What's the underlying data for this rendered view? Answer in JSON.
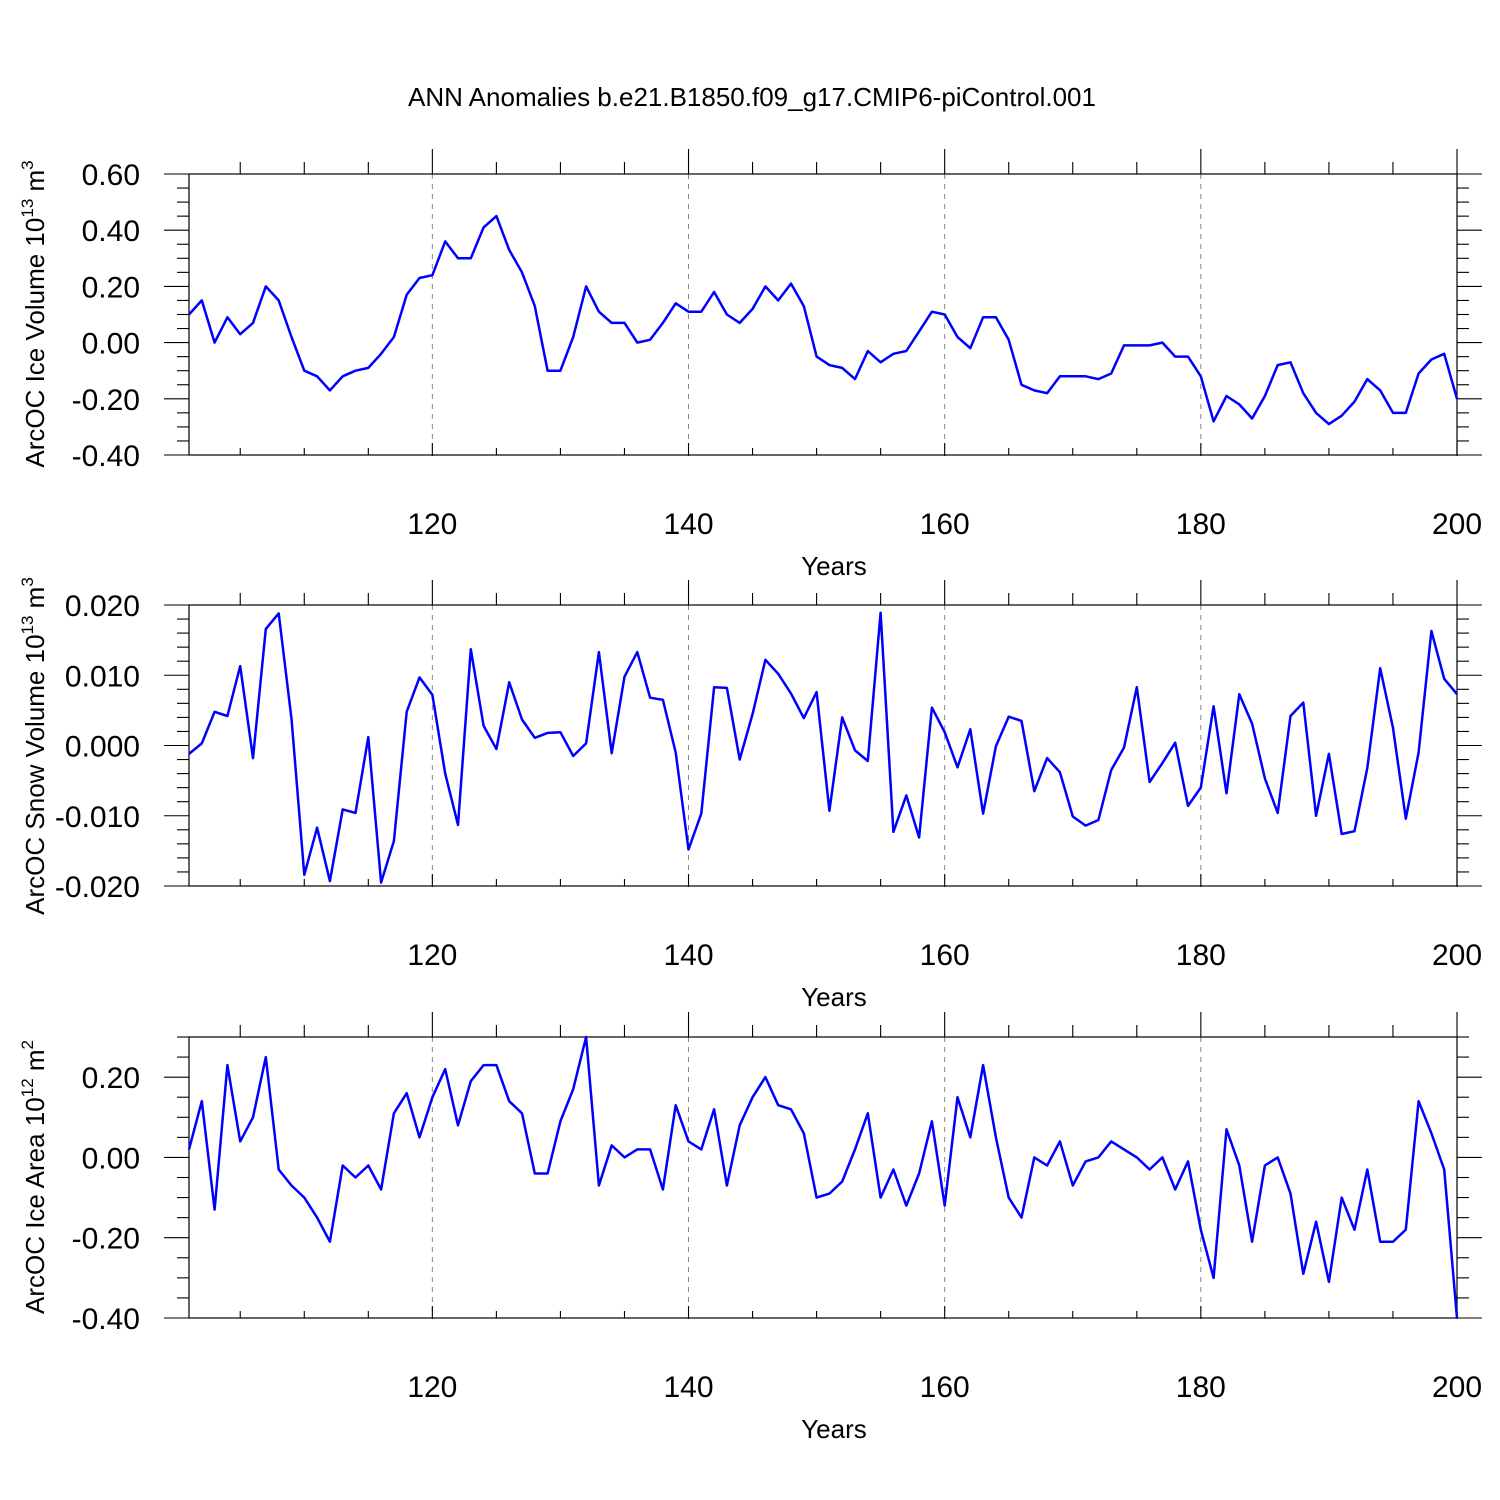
{
  "figure": {
    "title": "ANN Anomalies b.e21.B1850.f09_g17.CMIP6-piControl.001"
  },
  "chart_data": [
    {
      "type": "line",
      "xlabel": "Years",
      "ylabel": {
        "text": "ArcOC Ice Volume 10",
        "sup": "13",
        "unit": " m",
        "unit_sup": "3"
      },
      "xlim": [
        101,
        200
      ],
      "ylim": [
        -0.4,
        0.6
      ],
      "xticks": [
        120,
        140,
        160,
        180,
        200
      ],
      "xtick_labels": [
        "120",
        "140",
        "160",
        "180",
        "200"
      ],
      "yticks": [
        -0.4,
        -0.2,
        0.0,
        0.2,
        0.4,
        0.6
      ],
      "ytick_labels": [
        "-0.40",
        "-0.20",
        "0.00",
        "0.20",
        "0.40",
        "0.60"
      ],
      "y_minor_step": 0.05,
      "grid": "vertical dashed at major x ticks",
      "line_color": "#0000ff",
      "x_start": 101,
      "values": [
        0.1,
        0.15,
        0.0,
        0.09,
        0.03,
        0.07,
        0.2,
        0.15,
        0.02,
        -0.1,
        -0.12,
        -0.17,
        -0.12,
        -0.1,
        -0.09,
        -0.04,
        0.02,
        0.17,
        0.23,
        0.24,
        0.36,
        0.3,
        0.3,
        0.41,
        0.45,
        0.33,
        0.25,
        0.13,
        -0.1,
        -0.1,
        0.02,
        0.2,
        0.11,
        0.07,
        0.07,
        0.0,
        0.01,
        0.07,
        0.14,
        0.11,
        0.11,
        0.18,
        0.1,
        0.07,
        0.12,
        0.2,
        0.15,
        0.21,
        0.13,
        -0.05,
        -0.08,
        -0.09,
        -0.13,
        -0.03,
        -0.07,
        -0.04,
        -0.03,
        0.04,
        0.11,
        0.1,
        0.02,
        -0.02,
        0.09,
        0.09,
        0.01,
        -0.15,
        -0.17,
        -0.18,
        -0.12,
        -0.12,
        -0.12,
        -0.13,
        -0.11,
        -0.01,
        -0.01,
        -0.01,
        0.0,
        -0.05,
        -0.05,
        -0.12,
        -0.28,
        -0.19,
        -0.22,
        -0.27,
        -0.19,
        -0.08,
        -0.07,
        -0.18,
        -0.25,
        -0.29,
        -0.26,
        -0.21,
        -0.13,
        -0.17,
        -0.25,
        -0.25,
        -0.11,
        -0.06,
        -0.04,
        -0.2
      ]
    },
    {
      "type": "line",
      "xlabel": "Years",
      "ylabel": {
        "text": "ArcOC Snow Volume 10",
        "sup": "13",
        "unit": " m",
        "unit_sup": "3"
      },
      "xlim": [
        101,
        200
      ],
      "ylim": [
        -0.02,
        0.02
      ],
      "xticks": [
        120,
        140,
        160,
        180,
        200
      ],
      "xtick_labels": [
        "120",
        "140",
        "160",
        "180",
        "200"
      ],
      "yticks": [
        -0.02,
        -0.01,
        0.0,
        0.01,
        0.02
      ],
      "ytick_labels": [
        "-0.020",
        "-0.010",
        "0.000",
        "0.010",
        "0.020"
      ],
      "y_minor_step": 0.002,
      "grid": "vertical dashed at major x ticks",
      "line_color": "#0000ff",
      "x_start": 101,
      "values": [
        -0.0012,
        0.0003,
        0.0048,
        0.0042,
        0.0113,
        -0.0018,
        0.0166,
        0.0188,
        0.0038,
        -0.0184,
        -0.0117,
        -0.0193,
        -0.0091,
        -0.0096,
        0.0012,
        -0.0195,
        -0.0136,
        0.0048,
        0.0097,
        0.0072,
        -0.004,
        -0.0113,
        0.0137,
        0.0028,
        -0.0005,
        0.009,
        0.0037,
        0.0011,
        0.0018,
        0.0019,
        -0.0015,
        0.0003,
        0.0133,
        -0.0011,
        0.0098,
        0.0133,
        0.0068,
        0.0065,
        -0.001,
        -0.0148,
        -0.0097,
        0.0083,
        0.0082,
        -0.002,
        0.0045,
        0.0122,
        0.0102,
        0.0074,
        0.0039,
        0.0076,
        -0.0093,
        0.004,
        -0.0007,
        -0.0022,
        0.0189,
        -0.0123,
        -0.0071,
        -0.0131,
        0.0054,
        0.0019,
        -0.0031,
        0.0023,
        -0.0097,
        -0.0001,
        0.0041,
        0.0035,
        -0.0065,
        -0.0018,
        -0.0038,
        -0.0101,
        -0.0114,
        -0.0106,
        -0.0035,
        -0.0003,
        0.0083,
        -0.0052,
        -0.0025,
        0.0004,
        -0.0086,
        -0.006,
        0.0056,
        -0.0068,
        0.0073,
        0.0031,
        -0.0047,
        -0.0096,
        0.0042,
        0.0061,
        -0.01,
        -0.0012,
        -0.0126,
        -0.0122,
        -0.0032,
        0.011,
        0.0025,
        -0.0104,
        -0.001,
        0.0163,
        0.0095,
        0.0073
      ]
    },
    {
      "type": "line",
      "xlabel": "Years",
      "ylabel": {
        "text": "ArcOC Ice Area 10",
        "sup": "12",
        "unit": " m",
        "unit_sup": "2"
      },
      "xlim": [
        101,
        200
      ],
      "ylim": [
        -0.4,
        0.3
      ],
      "xticks": [
        120,
        140,
        160,
        180,
        200
      ],
      "xtick_labels": [
        "120",
        "140",
        "160",
        "180",
        "200"
      ],
      "yticks": [
        -0.4,
        -0.2,
        0.0,
        0.2
      ],
      "ytick_labels": [
        "-0.40",
        "-0.20",
        "0.00",
        "0.20"
      ],
      "y_minor_step": 0.05,
      "grid": "vertical dashed at major x ticks",
      "line_color": "#0000ff",
      "x_start": 101,
      "values": [
        0.02,
        0.14,
        -0.13,
        0.23,
        0.04,
        0.1,
        0.25,
        -0.03,
        -0.07,
        -0.1,
        -0.15,
        -0.21,
        -0.02,
        -0.05,
        -0.02,
        -0.08,
        0.11,
        0.16,
        0.05,
        0.15,
        0.22,
        0.08,
        0.19,
        0.23,
        0.23,
        0.14,
        0.11,
        -0.04,
        -0.04,
        0.09,
        0.17,
        0.3,
        -0.07,
        0.03,
        0.0,
        0.02,
        0.02,
        -0.08,
        0.13,
        0.04,
        0.02,
        0.12,
        -0.07,
        0.08,
        0.15,
        0.2,
        0.13,
        0.12,
        0.06,
        -0.1,
        -0.09,
        -0.06,
        0.02,
        0.11,
        -0.1,
        -0.03,
        -0.12,
        -0.04,
        0.09,
        -0.12,
        0.15,
        0.05,
        0.23,
        0.05,
        -0.1,
        -0.15,
        0.0,
        -0.02,
        0.04,
        -0.07,
        -0.01,
        0.0,
        0.04,
        0.02,
        0.0,
        -0.03,
        0.0,
        -0.08,
        -0.01,
        -0.18,
        -0.3,
        0.07,
        -0.02,
        -0.21,
        -0.02,
        0.0,
        -0.09,
        -0.29,
        -0.16,
        -0.31,
        -0.1,
        -0.18,
        -0.03,
        -0.21,
        -0.21,
        -0.18,
        0.14,
        0.06,
        -0.03,
        -0.4
      ]
    }
  ]
}
